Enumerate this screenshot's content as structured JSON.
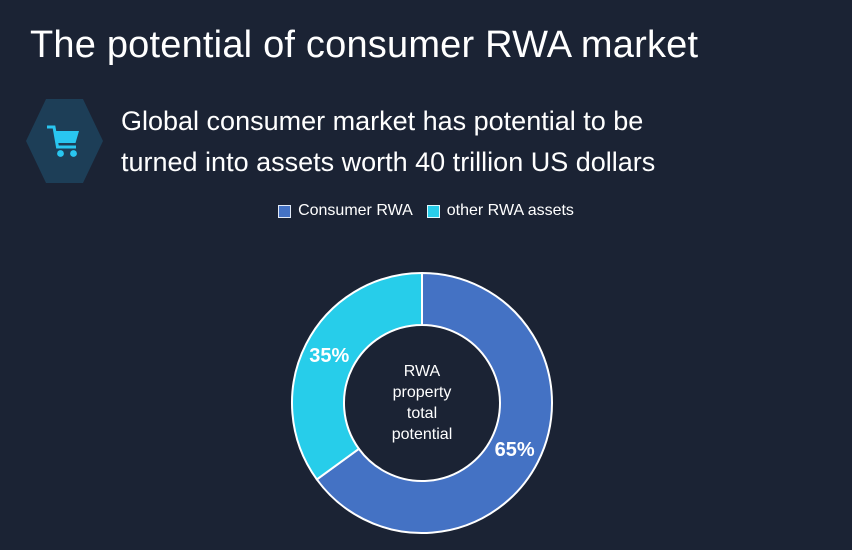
{
  "page": {
    "background": "#1b2334"
  },
  "header": {
    "title": "The potential of consumer RWA market"
  },
  "callout": {
    "icon": "shopping-cart-icon",
    "hexagon_color": "#1d3e57",
    "icon_color": "#29c6f0",
    "lines": [
      "Global consumer market has potential to be",
      "turned into assets worth 40 trillion US dollars"
    ]
  },
  "chart_data": {
    "type": "pie",
    "donut": true,
    "title": "",
    "categories": [
      "Consumer RWA",
      "other RWA assets"
    ],
    "values": [
      65,
      35
    ],
    "labels": [
      "65%",
      "35%"
    ],
    "colors": [
      "#4472c4",
      "#27cdea"
    ],
    "center_label_lines": [
      "RWA",
      "property",
      "total",
      "potential"
    ],
    "legend_position": "top",
    "start_angle_deg": 0,
    "direction": "clockwise",
    "outer_radius": 130,
    "inner_radius": 78,
    "stroke_color": "#ffffff",
    "stroke_width": 2,
    "label_color": "#ffffff",
    "label_font_size": 20
  }
}
